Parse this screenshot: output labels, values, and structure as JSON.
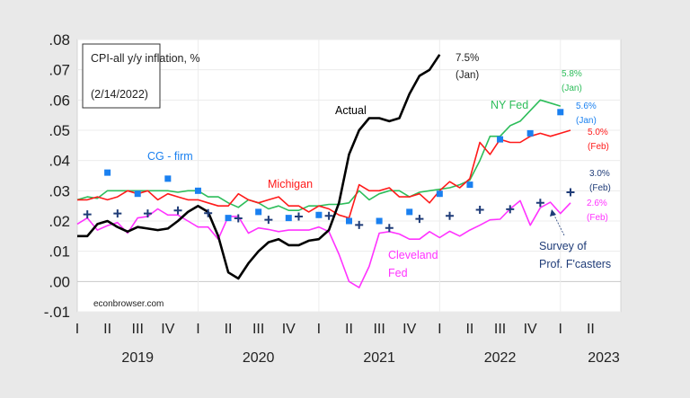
{
  "chart_data": {
    "type": "line",
    "title": "CPI-all y/y inflation, %",
    "subtitle": "(2/14/2022)",
    "source": "econbrowser.com",
    "xlabel": "",
    "ylabel": "",
    "xlim": [
      "2019-01",
      "2023-06"
    ],
    "ylim": [
      -0.01,
      0.08
    ],
    "y_ticks": [
      ".08",
      ".07",
      ".06",
      ".05",
      ".04",
      ".03",
      ".02",
      ".01",
      ".00",
      "-.01"
    ],
    "quarter_ticks": [
      "I",
      "II",
      "III",
      "IV",
      "I",
      "II",
      "III",
      "IV",
      "I",
      "II",
      "III",
      "IV",
      "I",
      "II",
      "III",
      "IV",
      "I",
      "II"
    ],
    "year_labels": [
      "2019",
      "2020",
      "2021",
      "2022",
      "2023"
    ],
    "grid": true,
    "series": [
      {
        "name": "Actual",
        "kind": "line",
        "color": "#000000",
        "end_label": [
          "7.5%",
          "(Jan)"
        ],
        "x": [
          "2019-01",
          "2019-02",
          "2019-03",
          "2019-04",
          "2019-05",
          "2019-06",
          "2019-07",
          "2019-08",
          "2019-09",
          "2019-10",
          "2019-11",
          "2019-12",
          "2020-01",
          "2020-02",
          "2020-03",
          "2020-04",
          "2020-05",
          "2020-06",
          "2020-07",
          "2020-08",
          "2020-09",
          "2020-10",
          "2020-11",
          "2020-12",
          "2021-01",
          "2021-02",
          "2021-03",
          "2021-04",
          "2021-05",
          "2021-06",
          "2021-07",
          "2021-08",
          "2021-09",
          "2021-10",
          "2021-11",
          "2021-12",
          "2022-01"
        ],
        "y": [
          0.015,
          0.015,
          0.019,
          0.02,
          0.018,
          0.0165,
          0.018,
          0.0175,
          0.017,
          0.0175,
          0.02,
          0.023,
          0.025,
          0.023,
          0.015,
          0.003,
          0.001,
          0.006,
          0.01,
          0.013,
          0.014,
          0.012,
          0.012,
          0.0135,
          0.014,
          0.017,
          0.026,
          0.042,
          0.05,
          0.054,
          0.054,
          0.053,
          0.054,
          0.062,
          0.068,
          0.07,
          0.075
        ]
      },
      {
        "name": "Michigan",
        "kind": "line",
        "color": "#ff1a1a",
        "end_label": [
          "5.0%",
          "(Feb)"
        ],
        "x": [
          "2019-01",
          "2019-02",
          "2019-03",
          "2019-04",
          "2019-05",
          "2019-06",
          "2019-07",
          "2019-08",
          "2019-09",
          "2019-10",
          "2019-11",
          "2019-12",
          "2020-01",
          "2020-02",
          "2020-03",
          "2020-04",
          "2020-05",
          "2020-06",
          "2020-07",
          "2020-08",
          "2020-09",
          "2020-10",
          "2020-11",
          "2020-12",
          "2021-01",
          "2021-02",
          "2021-03",
          "2021-04",
          "2021-05",
          "2021-06",
          "2021-07",
          "2021-08",
          "2021-09",
          "2021-10",
          "2021-11",
          "2021-12",
          "2022-01",
          "2022-02",
          "2022-03",
          "2022-04",
          "2022-05",
          "2022-06",
          "2022-07",
          "2022-08",
          "2022-09",
          "2022-10",
          "2022-11",
          "2022-12",
          "2023-01",
          "2023-02"
        ],
        "y": [
          0.027,
          0.027,
          0.028,
          0.027,
          0.028,
          0.03,
          0.029,
          0.03,
          0.027,
          0.029,
          0.028,
          0.027,
          0.027,
          0.026,
          0.025,
          0.025,
          0.029,
          0.027,
          0.026,
          0.027,
          0.028,
          0.025,
          0.025,
          0.023,
          0.025,
          0.024,
          0.022,
          0.021,
          0.032,
          0.03,
          0.03,
          0.031,
          0.028,
          0.028,
          0.029,
          0.026,
          0.03,
          0.033,
          0.031,
          0.034,
          0.046,
          0.042,
          0.047,
          0.046,
          0.046,
          0.048,
          0.049,
          0.048,
          0.049,
          0.05
        ]
      },
      {
        "name": "NY Fed",
        "kind": "line",
        "color": "#2dbd5a",
        "end_label": [
          "5.8%",
          "(Jan)"
        ],
        "x": [
          "2019-01",
          "2019-02",
          "2019-03",
          "2019-04",
          "2019-05",
          "2019-06",
          "2019-07",
          "2019-08",
          "2019-09",
          "2019-10",
          "2019-11",
          "2019-12",
          "2020-01",
          "2020-02",
          "2020-03",
          "2020-04",
          "2020-05",
          "2020-06",
          "2020-07",
          "2020-08",
          "2020-09",
          "2020-10",
          "2020-11",
          "2020-12",
          "2021-01",
          "2021-02",
          "2021-03",
          "2021-04",
          "2021-05",
          "2021-06",
          "2021-07",
          "2021-08",
          "2021-09",
          "2021-10",
          "2021-11",
          "2021-12",
          "2022-01",
          "2022-02",
          "2022-03",
          "2022-04",
          "2022-05",
          "2022-06",
          "2022-07",
          "2022-08",
          "2022-09",
          "2022-10",
          "2022-11",
          "2022-12",
          "2023-01"
        ],
        "y": [
          0.027,
          0.028,
          0.0275,
          0.03,
          0.03,
          0.03,
          0.03,
          0.03,
          0.03,
          0.03,
          0.0295,
          0.03,
          0.03,
          0.028,
          0.028,
          0.026,
          0.0245,
          0.027,
          0.026,
          0.024,
          0.025,
          0.0235,
          0.0235,
          0.025,
          0.025,
          0.0255,
          0.0255,
          0.026,
          0.03,
          0.027,
          0.029,
          0.03,
          0.03,
          0.028,
          0.0295,
          0.03,
          0.0305,
          0.031,
          0.032,
          0.0335,
          0.04,
          0.048,
          0.048,
          0.0515,
          0.053,
          0.0565,
          0.06,
          0.059,
          0.058
        ]
      },
      {
        "name": "Cleveland Fed",
        "kind": "line",
        "color": "#ff33ff",
        "end_label": [
          "2.6%",
          "(Feb)"
        ],
        "x": [
          "2019-01",
          "2019-02",
          "2019-03",
          "2019-04",
          "2019-05",
          "2019-06",
          "2019-07",
          "2019-08",
          "2019-09",
          "2019-10",
          "2019-11",
          "2019-12",
          "2020-01",
          "2020-02",
          "2020-03",
          "2020-04",
          "2020-05",
          "2020-06",
          "2020-07",
          "2020-08",
          "2020-09",
          "2020-10",
          "2020-11",
          "2020-12",
          "2021-01",
          "2021-02",
          "2021-03",
          "2021-04",
          "2021-05",
          "2021-06",
          "2021-07",
          "2021-08",
          "2021-09",
          "2021-10",
          "2021-11",
          "2021-12",
          "2022-01",
          "2022-02",
          "2022-03",
          "2022-04",
          "2022-05",
          "2022-06",
          "2022-07",
          "2022-08",
          "2022-09",
          "2022-10",
          "2022-11",
          "2022-12",
          "2023-01",
          "2023-02"
        ],
        "y": [
          0.019,
          0.021,
          0.017,
          0.0185,
          0.0195,
          0.016,
          0.021,
          0.0215,
          0.024,
          0.022,
          0.022,
          0.02,
          0.018,
          0.018,
          0.014,
          0.0215,
          0.0215,
          0.016,
          0.0177,
          0.0172,
          0.0165,
          0.017,
          0.017,
          0.017,
          0.018,
          0.0165,
          0.009,
          0.0,
          -0.002,
          0.005,
          0.016,
          0.0165,
          0.0157,
          0.014,
          0.014,
          0.0165,
          0.0145,
          0.0166,
          0.015,
          0.017,
          0.0186,
          0.0204,
          0.0206,
          0.024,
          0.0267,
          0.0186,
          0.0244,
          0.0262,
          0.0225,
          0.026
        ]
      },
      {
        "name": "CG - firm",
        "kind": "square",
        "color": "#1a80f0",
        "end_label": [
          "5.6%",
          "(Jan)"
        ],
        "x": [
          "2019-04",
          "2019-07",
          "2019-10",
          "2020-01",
          "2020-04",
          "2020-07",
          "2020-10",
          "2021-01",
          "2021-04",
          "2021-07",
          "2021-10",
          "2022-01",
          "2022-04",
          "2022-07",
          "2022-10",
          "2023-01"
        ],
        "y": [
          0.036,
          0.029,
          0.034,
          0.03,
          0.021,
          0.023,
          0.021,
          0.022,
          0.02,
          0.02,
          0.023,
          0.029,
          0.032,
          0.047,
          0.049,
          0.056
        ]
      },
      {
        "name": "Survey of Prof. F'casters",
        "kind": "cross",
        "color": "#1f3c78",
        "end_label": [
          "3.0%",
          "(Feb)"
        ],
        "x": [
          "2019-02",
          "2019-05",
          "2019-08",
          "2019-11",
          "2020-02",
          "2020-05",
          "2020-08",
          "2020-11",
          "2021-02",
          "2021-05",
          "2021-08",
          "2021-11",
          "2022-02",
          "2022-05",
          "2022-08",
          "2022-11",
          "2023-02"
        ],
        "y": [
          0.0222,
          0.0225,
          0.0225,
          0.0235,
          0.0226,
          0.0209,
          0.0204,
          0.0215,
          0.0217,
          0.0187,
          0.0177,
          0.0207,
          0.0217,
          0.0237,
          0.0239,
          0.026,
          0.0295
        ]
      }
    ]
  }
}
